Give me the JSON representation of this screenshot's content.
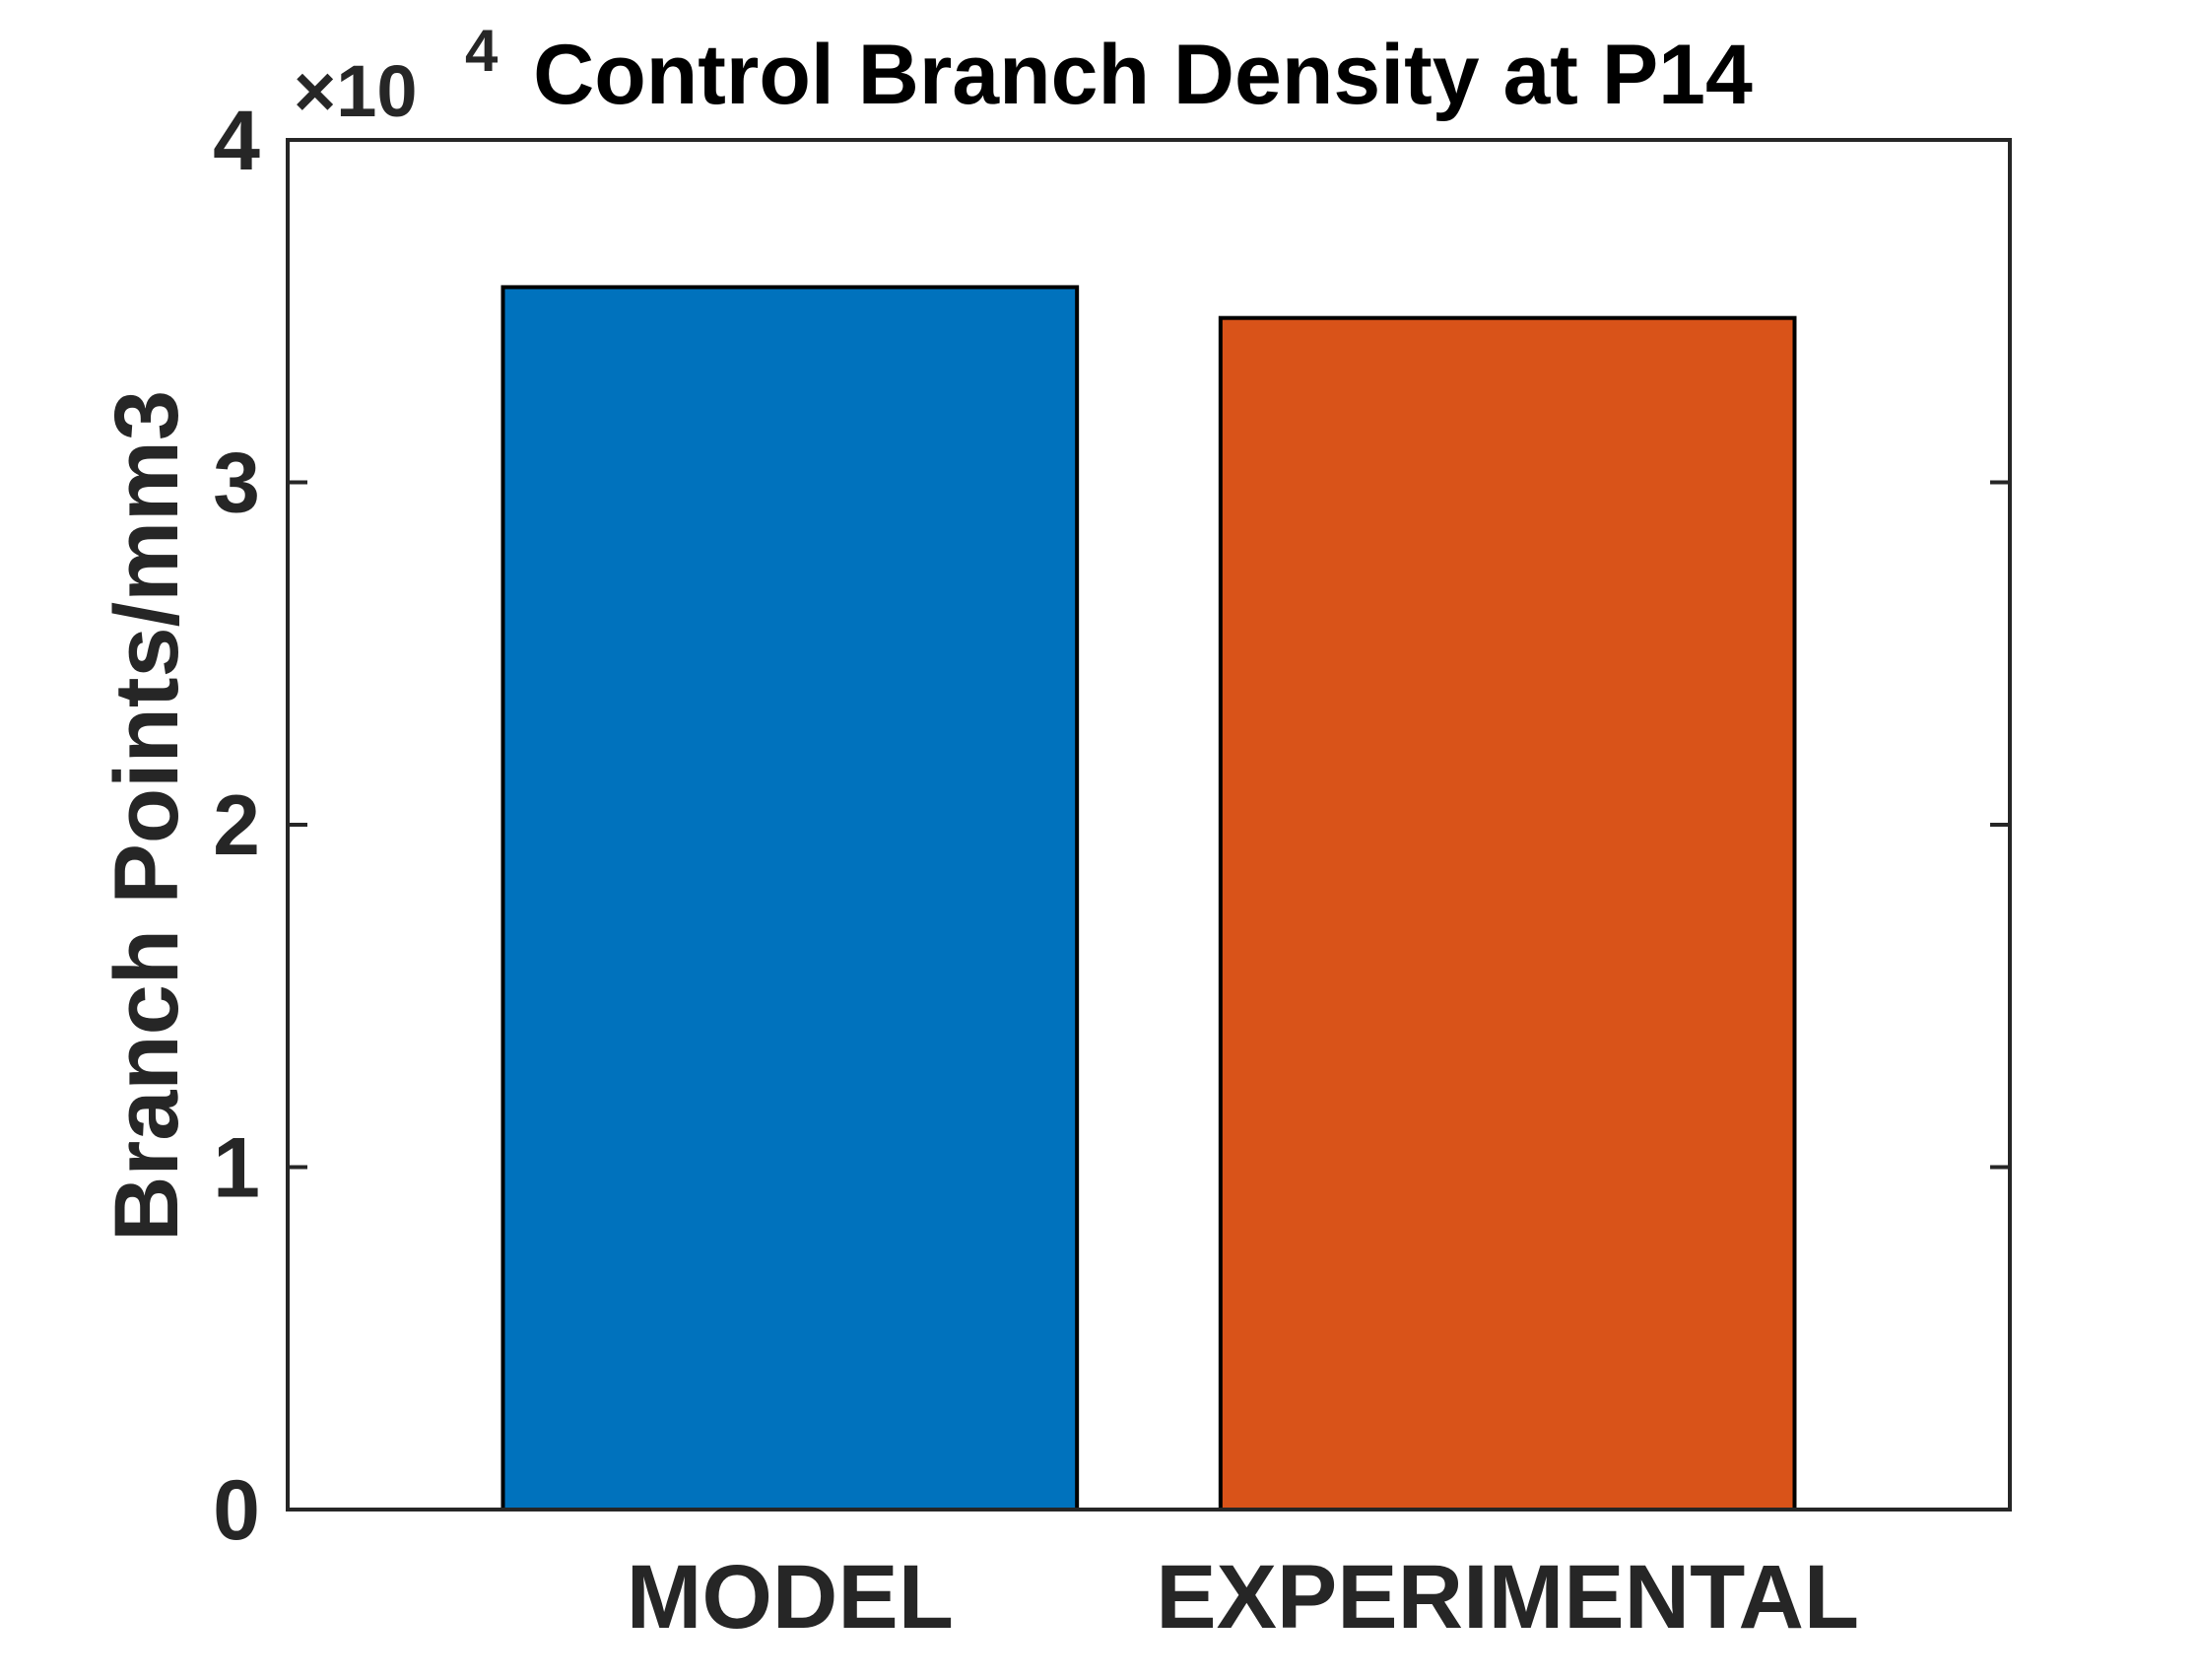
{
  "chart_data": {
    "type": "bar",
    "title": "Control Branch Density at P14",
    "xlabel": "",
    "ylabel": "Branch Points/mm3",
    "categories": [
      "MODEL",
      "EXPERIMENTAL"
    ],
    "values": [
      35700,
      34800
    ],
    "bar_colors": [
      "#0072BD",
      "#D95319"
    ],
    "ylim": [
      0,
      40000
    ],
    "yticks": [
      0,
      10000,
      20000,
      30000,
      40000
    ],
    "ytick_labels": [
      "0",
      "1",
      "2",
      "3",
      "4"
    ],
    "y_exponent": {
      "base": "×10",
      "power": "4"
    },
    "grid": false,
    "legend": "none"
  }
}
